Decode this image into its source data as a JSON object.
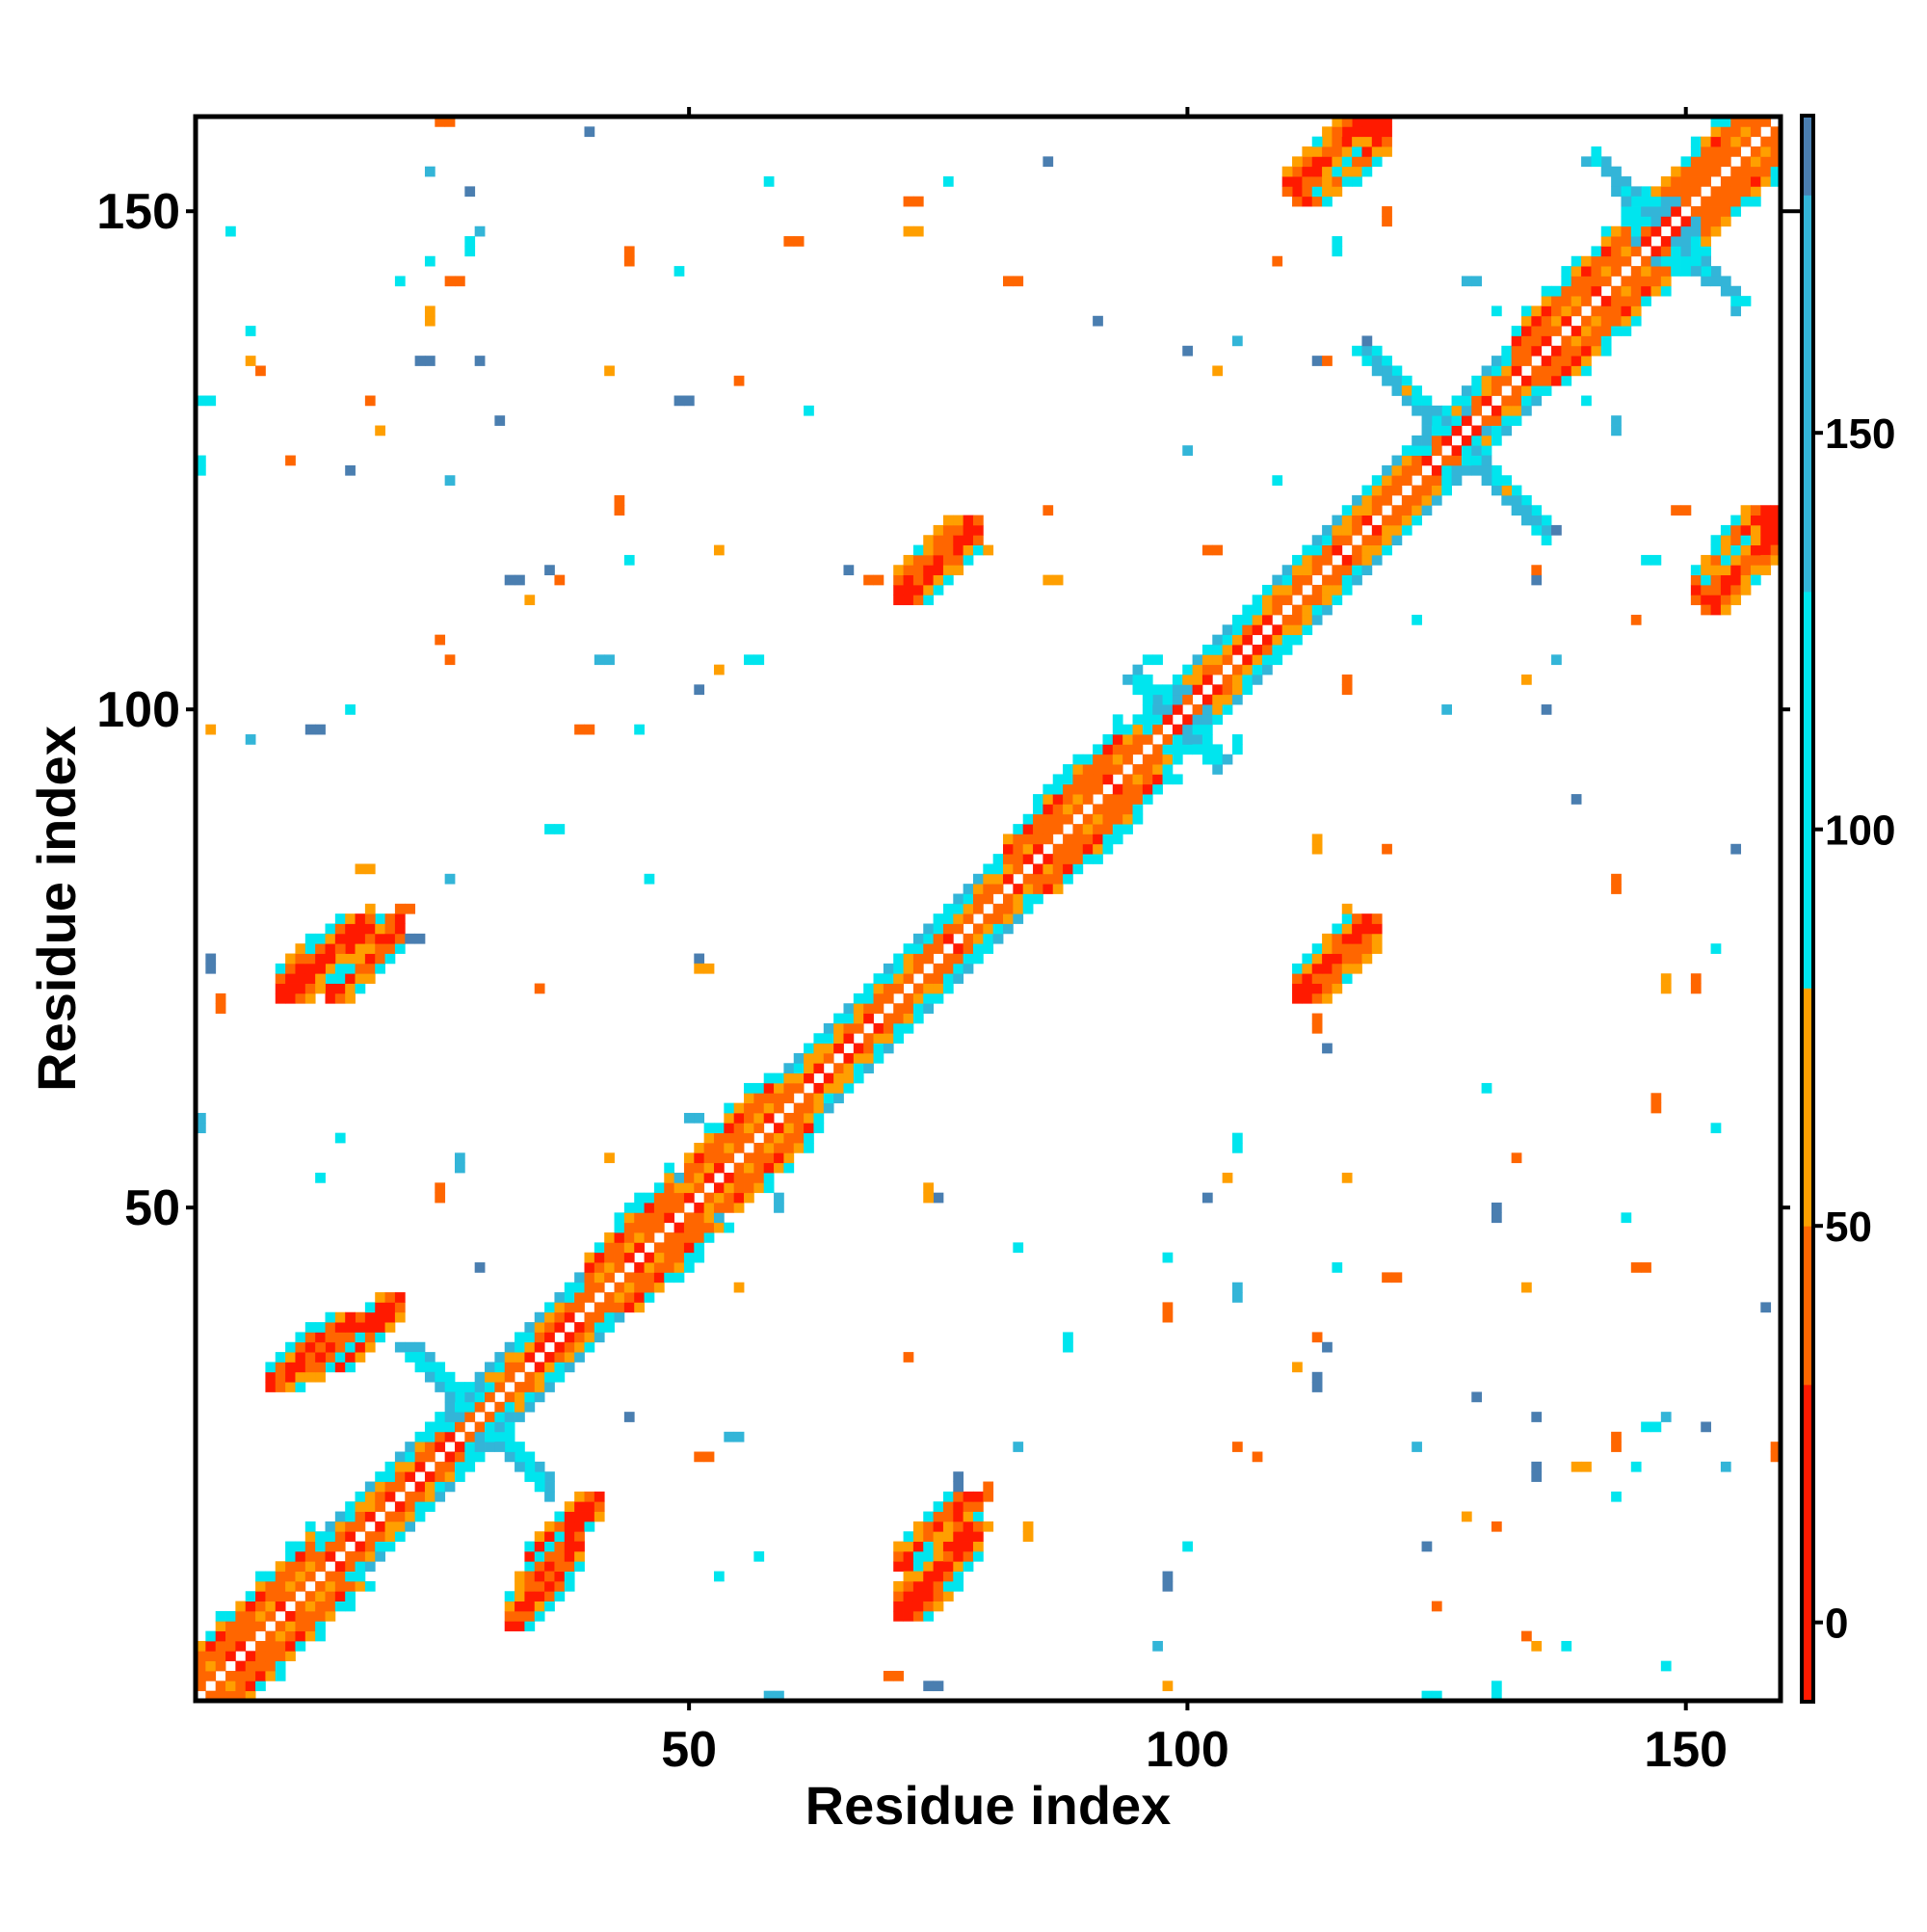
{
  "chart_data": {
    "type": "heatmap",
    "title": "",
    "xlabel": "Residue index",
    "ylabel": "Residue index",
    "xlim": [
      0.5,
      159.5
    ],
    "ylim": [
      0.5,
      159.5
    ],
    "x_ticks": [
      50,
      100,
      150
    ],
    "x_tick_labels": [
      "50",
      "100",
      "150"
    ],
    "y_ticks": [
      50,
      100,
      150
    ],
    "y_tick_labels": [
      "50",
      "100",
      "150"
    ],
    "colorbar": {
      "range": [
        -10,
        190
      ],
      "ticks": [
        0,
        50,
        100,
        150
      ],
      "tick_labels": [
        "0",
        "50",
        "100",
        "150"
      ],
      "bands": [
        {
          "from": -10,
          "to": 30,
          "color": "#ff1a00"
        },
        {
          "from": 30,
          "to": 50,
          "color": "#ff6600"
        },
        {
          "from": 50,
          "to": 80,
          "color": "#ff9f00"
        },
        {
          "from": 80,
          "to": 130,
          "color": "#00e5ee"
        },
        {
          "from": 130,
          "to": 180,
          "color": "#33b5d8"
        },
        {
          "from": 180,
          "to": 190,
          "color": "#4a7eb0"
        }
      ]
    },
    "colors": {
      "red": "#ff1a00",
      "red_orange": "#ff6600",
      "orange": "#ff9f00",
      "cyan": "#00e5ee",
      "blue": "#33b5d8",
      "dark_blue": "#4a7eb0"
    },
    "features": [
      {
        "kind": "diagonal_band",
        "residues": [
          1,
          159
        ],
        "dominant_colors": [
          "red_orange",
          "orange",
          "red"
        ]
      },
      {
        "kind": "helix_segment",
        "residues": [
          1,
          12
        ]
      },
      {
        "kind": "helix_segment",
        "residues": [
          40,
          48
        ]
      },
      {
        "kind": "helix_segment",
        "residues": [
          50,
          58
        ]
      },
      {
        "kind": "helix_segment",
        "residues": [
          82,
          93
        ]
      },
      {
        "kind": "helix_segment",
        "residues": [
          133,
          158
        ]
      },
      {
        "kind": "loop_region",
        "center": 29
      },
      {
        "kind": "loop_region",
        "center": 99
      },
      {
        "kind": "loop_region",
        "center": 127
      },
      {
        "kind": "loop_region",
        "center": 148
      },
      {
        "kind": "off_diagonal_patch",
        "x": [
          14,
          21
        ],
        "y": [
          71,
          79
        ]
      },
      {
        "kind": "off_diagonal_patch",
        "x": [
          14,
          21
        ],
        "y": [
          34,
          41
        ]
      },
      {
        "kind": "off_diagonal_patch",
        "x": [
          32,
          39
        ],
        "y": [
          8,
          17
        ]
      },
      {
        "kind": "off_diagonal_patch",
        "x": [
          71,
          79
        ],
        "y": [
          9,
          18
        ]
      },
      {
        "kind": "off_diagonal_patch",
        "x": [
          71,
          79
        ],
        "y": [
          111,
          119
        ]
      },
      {
        "kind": "off_diagonal_patch",
        "x": [
          111,
          120
        ],
        "y": [
          71,
          79
        ]
      },
      {
        "kind": "off_diagonal_patch",
        "x": [
          110,
          118
        ],
        "y": [
          151,
          159
        ]
      },
      {
        "kind": "off_diagonal_patch",
        "x": [
          152,
          159
        ],
        "y": [
          110,
          118
        ]
      }
    ]
  }
}
